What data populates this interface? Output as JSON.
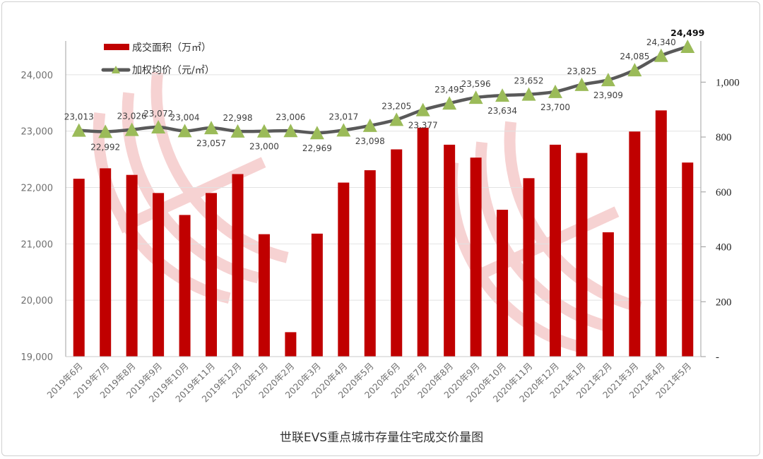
{
  "chart_data": {
    "type": "bar+line",
    "title": "世联EVS重点城市存量住宅成交价量图",
    "categories": [
      "2019年6月",
      "2019年7月",
      "2019年8月",
      "2019年9月",
      "2019年10月",
      "2019年11月",
      "2019年12月",
      "2020年1月",
      "2020年2月",
      "2020年3月",
      "2020年4月",
      "2020年5月",
      "2020年6月",
      "2020年7月",
      "2020年8月",
      "2020年9月",
      "2020年10月",
      "2020年11月",
      "2020年12月",
      "2021年1月",
      "2021年2月",
      "2021年3月",
      "2021年4月",
      "2021年5月"
    ],
    "series": [
      {
        "name": "成交面积（万㎡）",
        "type": "bar",
        "axis": "right",
        "color": "#C00000",
        "values": [
          648,
          686,
          662,
          596,
          516,
          596,
          665,
          446,
          89,
          448,
          634,
          679,
          755,
          834,
          772,
          725,
          535,
          650,
          772,
          742,
          453,
          820,
          897,
          707
        ]
      },
      {
        "name": "加权均价（元/㎡）",
        "type": "line",
        "axis": "left",
        "color": "#595959",
        "marker_color": "#9BBB59",
        "marker": "triangle",
        "values": [
          23013,
          22992,
          23026,
          23072,
          23004,
          23057,
          22998,
          23000,
          23006,
          22969,
          23017,
          23098,
          23205,
          23377,
          23495,
          23596,
          23634,
          23652,
          23700,
          23825,
          23909,
          24085,
          24340,
          24499
        ],
        "labels": [
          "23,013",
          "22,992",
          "23,026",
          "23,072",
          "23,004",
          "23,057",
          "22,998",
          "23,000",
          "23,006",
          "22,969",
          "23,017",
          "23,098",
          "23,205",
          "23,377",
          "23,495",
          "23,596",
          "23,634",
          "23,652",
          "23,700",
          "23,825",
          "23,909",
          "24,085",
          "24,340",
          "24,499"
        ]
      }
    ],
    "left_axis": {
      "ylim": [
        19000,
        24600
      ],
      "ticks": [
        19000,
        20000,
        21000,
        22000,
        23000,
        24000
      ],
      "tick_labels": [
        "19,000",
        "20,000",
        "21,000",
        "22,000",
        "23,000",
        "24,000"
      ]
    },
    "right_axis": {
      "ylim": [
        0,
        1150
      ],
      "ticks": [
        0,
        200,
        400,
        600,
        800,
        1000
      ],
      "tick_labels": [
        "-",
        "200",
        "400",
        "600",
        "800",
        "1,000"
      ]
    },
    "grid": true,
    "legend": "top-left"
  }
}
